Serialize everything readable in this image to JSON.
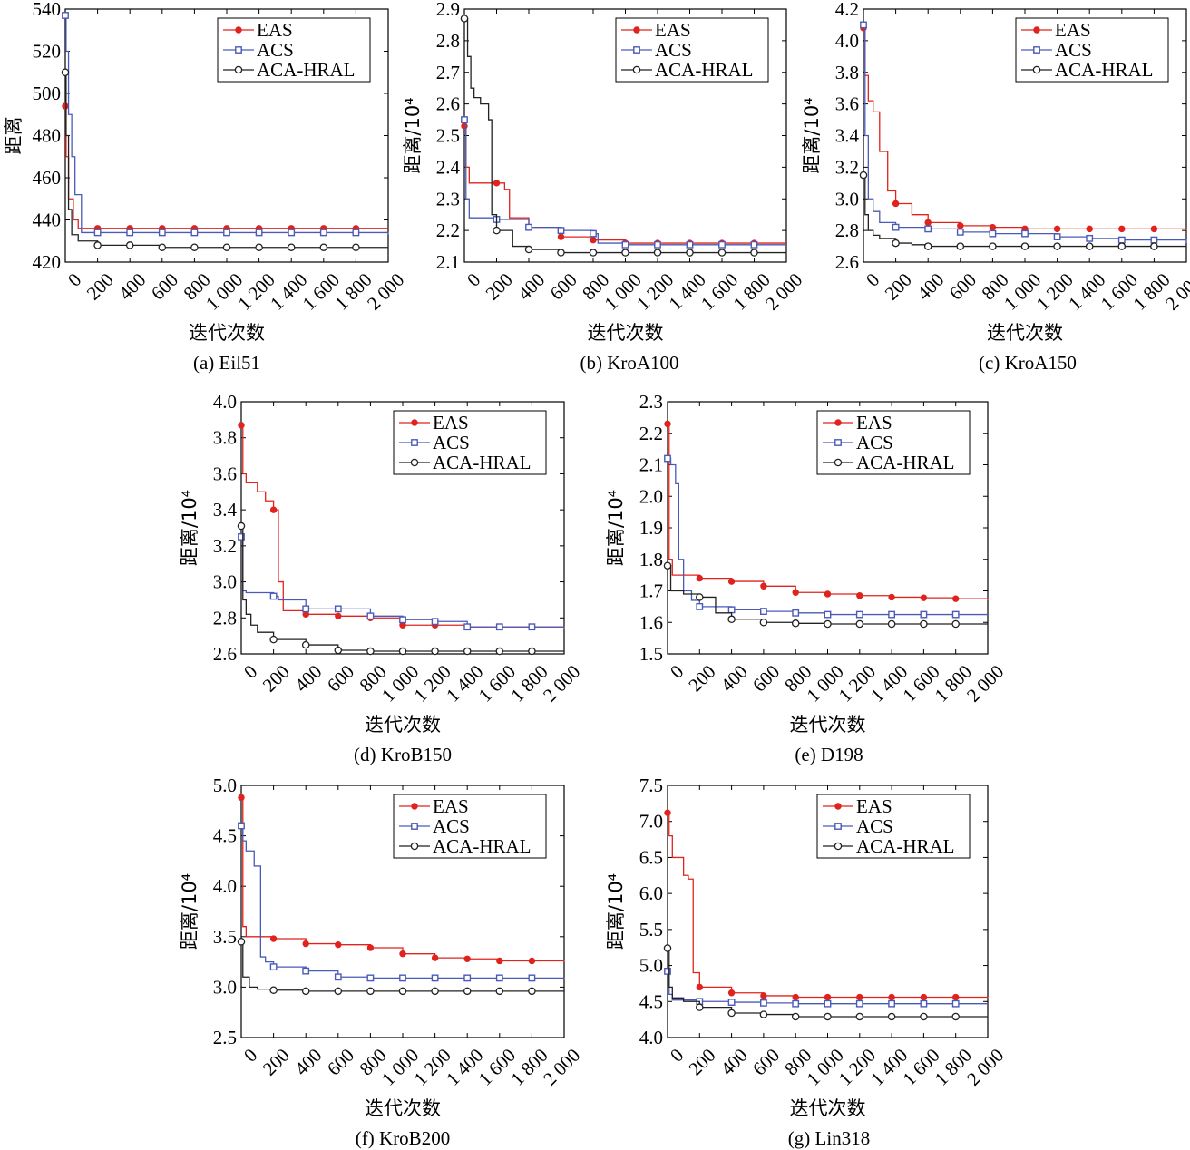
{
  "colors": {
    "EAS": "#e0231c",
    "ACS": "#4a5ab8",
    "ACA-HRAL": "#222222"
  },
  "chart_data": [
    {
      "type": "line",
      "caption": "(a) Eil51",
      "xlabel": "迭代次数",
      "ylabel": "距离",
      "xlim": [
        0,
        2000
      ],
      "ylim": [
        420,
        540
      ],
      "xticks": [
        0,
        200,
        400,
        600,
        800,
        1000,
        1200,
        1400,
        1600,
        1800,
        2000
      ],
      "xtick_labels": [
        "0",
        "200",
        "400",
        "600",
        "800",
        "1 000",
        "1 200",
        "1 400",
        "1 600",
        "1 800",
        "2 000"
      ],
      "yticks": [
        420,
        440,
        460,
        480,
        500,
        520,
        540
      ],
      "ytick_labels": [
        "420",
        "440",
        "460",
        "480",
        "500",
        "520",
        "540"
      ],
      "legend": [
        "EAS",
        "ACS",
        "ACA-HRAL"
      ],
      "legend_position": "top-right",
      "series": [
        {
          "name": "EAS",
          "x": [
            0,
            5,
            20,
            50,
            80,
            200,
            2000
          ],
          "y": [
            494,
            470,
            450,
            440,
            436,
            436,
            436
          ]
        },
        {
          "name": "ACS",
          "x": [
            0,
            5,
            20,
            40,
            60,
            100,
            200,
            2000
          ],
          "y": [
            537,
            520,
            490,
            470,
            452,
            434,
            434,
            433
          ]
        },
        {
          "name": "ACA-HRAL",
          "x": [
            0,
            5,
            20,
            40,
            80,
            200,
            400,
            600,
            2000
          ],
          "y": [
            510,
            480,
            445,
            433,
            430,
            428,
            428,
            427,
            427
          ]
        }
      ]
    },
    {
      "type": "line",
      "caption": "(b) KroA100",
      "xlabel": "迭代次数",
      "ylabel": "距离/10⁴",
      "xlim": [
        0,
        2000
      ],
      "ylim": [
        2.1,
        2.9
      ],
      "xticks": [
        0,
        200,
        400,
        600,
        800,
        1000,
        1200,
        1400,
        1600,
        1800,
        2000
      ],
      "xtick_labels": [
        "0",
        "200",
        "400",
        "600",
        "800",
        "1 000",
        "1 200",
        "1 400",
        "1 600",
        "1 800",
        "2 000"
      ],
      "yticks": [
        2.1,
        2.2,
        2.3,
        2.4,
        2.5,
        2.6,
        2.7,
        2.8,
        2.9
      ],
      "ytick_labels": [
        "2.1",
        "2.2",
        "2.3",
        "2.4",
        "2.5",
        "2.6",
        "2.7",
        "2.8",
        "2.9"
      ],
      "legend": [
        "EAS",
        "ACS",
        "ACA-HRAL"
      ],
      "legend_position": "top-right",
      "series": [
        {
          "name": "EAS",
          "x": [
            0,
            10,
            30,
            200,
            250,
            280,
            400,
            600,
            800,
            1000,
            2000
          ],
          "y": [
            2.53,
            2.4,
            2.35,
            2.35,
            2.33,
            2.24,
            2.21,
            2.18,
            2.17,
            2.16,
            2.16
          ]
        },
        {
          "name": "ACS",
          "x": [
            0,
            10,
            30,
            200,
            400,
            600,
            800,
            830,
            1000,
            2000
          ],
          "y": [
            2.55,
            2.3,
            2.24,
            2.235,
            2.21,
            2.2,
            2.19,
            2.16,
            2.155,
            2.155
          ]
        },
        {
          "name": "ACA-HRAL",
          "x": [
            0,
            20,
            40,
            60,
            100,
            150,
            170,
            200,
            300,
            400,
            600,
            800,
            2000
          ],
          "y": [
            2.87,
            2.75,
            2.65,
            2.62,
            2.6,
            2.55,
            2.25,
            2.2,
            2.15,
            2.14,
            2.13,
            2.13,
            2.13
          ]
        }
      ]
    },
    {
      "type": "line",
      "caption": "(c) KroA150",
      "xlabel": "迭代次数",
      "ylabel": "距离/10⁴",
      "xlim": [
        0,
        2000
      ],
      "ylim": [
        2.6,
        4.2
      ],
      "xticks": [
        0,
        200,
        400,
        600,
        800,
        1000,
        1200,
        1400,
        1600,
        1800,
        2000
      ],
      "xtick_labels": [
        "0",
        "200",
        "400",
        "600",
        "800",
        "1 000",
        "1 200",
        "1 400",
        "1 600",
        "1 800",
        "2 000"
      ],
      "yticks": [
        2.6,
        2.8,
        3.0,
        3.2,
        3.4,
        3.6,
        3.8,
        4.0,
        4.2
      ],
      "ytick_labels": [
        "2.6",
        "2.8",
        "3.0",
        "3.2",
        "3.4",
        "3.6",
        "3.8",
        "4.0",
        "4.2"
      ],
      "legend": [
        "EAS",
        "ACS",
        "ACA-HRAL"
      ],
      "legend_position": "top-right",
      "series": [
        {
          "name": "EAS",
          "x": [
            0,
            10,
            30,
            60,
            100,
            150,
            200,
            300,
            400,
            600,
            800,
            1000,
            2000
          ],
          "y": [
            4.08,
            3.78,
            3.62,
            3.55,
            3.3,
            3.05,
            2.97,
            2.9,
            2.85,
            2.83,
            2.82,
            2.81,
            2.8
          ]
        },
        {
          "name": "ACS",
          "x": [
            0,
            10,
            30,
            60,
            100,
            200,
            400,
            600,
            800,
            1000,
            1200,
            1400,
            1600,
            2000
          ],
          "y": [
            4.1,
            3.4,
            3.0,
            2.92,
            2.85,
            2.82,
            2.81,
            2.79,
            2.78,
            2.78,
            2.76,
            2.75,
            2.74,
            2.72
          ]
        },
        {
          "name": "ACA-HRAL",
          "x": [
            0,
            10,
            30,
            60,
            100,
            200,
            300,
            400,
            2000
          ],
          "y": [
            3.15,
            2.9,
            2.8,
            2.77,
            2.75,
            2.72,
            2.71,
            2.7,
            2.7
          ]
        }
      ]
    },
    {
      "type": "line",
      "caption": "(d) KroB150",
      "xlabel": "迭代次数",
      "ylabel": "距离/10⁴",
      "xlim": [
        0,
        2000
      ],
      "ylim": [
        2.6,
        4.0
      ],
      "xticks": [
        0,
        200,
        400,
        600,
        800,
        1000,
        1200,
        1400,
        1600,
        1800,
        2000
      ],
      "xtick_labels": [
        "0",
        "200",
        "400",
        "600",
        "800",
        "1 000",
        "1 200",
        "1 400",
        "1 600",
        "1 800",
        "2 000"
      ],
      "yticks": [
        2.6,
        2.8,
        3.0,
        3.2,
        3.4,
        3.6,
        3.8,
        4.0
      ],
      "ytick_labels": [
        "2.6",
        "2.8",
        "3.0",
        "3.2",
        "3.4",
        "3.6",
        "3.8",
        "4.0"
      ],
      "legend": [
        "EAS",
        "ACS",
        "ACA-HRAL"
      ],
      "legend_position": "top-right",
      "series": [
        {
          "name": "EAS",
          "x": [
            0,
            10,
            30,
            100,
            150,
            200,
            230,
            260,
            400,
            600,
            800,
            1000,
            1400,
            2000
          ],
          "y": [
            3.87,
            3.6,
            3.55,
            3.5,
            3.45,
            3.4,
            3.0,
            2.84,
            2.82,
            2.81,
            2.8,
            2.76,
            2.75,
            2.74
          ]
        },
        {
          "name": "ACS",
          "x": [
            0,
            10,
            30,
            200,
            230,
            400,
            600,
            800,
            1000,
            1200,
            1400,
            2000
          ],
          "y": [
            3.25,
            2.95,
            2.94,
            2.92,
            2.9,
            2.85,
            2.85,
            2.81,
            2.79,
            2.78,
            2.75,
            2.745
          ]
        },
        {
          "name": "ACA-HRAL",
          "x": [
            0,
            10,
            30,
            60,
            100,
            200,
            400,
            600,
            800,
            2000
          ],
          "y": [
            3.31,
            2.9,
            2.82,
            2.76,
            2.72,
            2.68,
            2.65,
            2.62,
            2.615,
            2.61
          ]
        }
      ]
    },
    {
      "type": "line",
      "caption": "(e) D198",
      "xlabel": "迭代次数",
      "ylabel": "距离/10⁴",
      "xlim": [
        0,
        2000
      ],
      "ylim": [
        1.5,
        2.3
      ],
      "xticks": [
        0,
        200,
        400,
        600,
        800,
        1000,
        1200,
        1400,
        1600,
        1800,
        2000
      ],
      "xtick_labels": [
        "0",
        "200",
        "400",
        "600",
        "800",
        "1 000",
        "1 200",
        "1 400",
        "1 600",
        "1 800",
        "2 000"
      ],
      "yticks": [
        1.5,
        1.6,
        1.7,
        1.8,
        1.9,
        2.0,
        2.1,
        2.2,
        2.3
      ],
      "ytick_labels": [
        "1.5",
        "1.6",
        "1.7",
        "1.8",
        "1.9",
        "2.0",
        "2.1",
        "2.2",
        "2.3"
      ],
      "legend": [
        "EAS",
        "ACS",
        "ACA-HRAL"
      ],
      "legend_position": "top-right",
      "series": [
        {
          "name": "EAS",
          "x": [
            0,
            10,
            30,
            200,
            400,
            600,
            800,
            1000,
            1200,
            1400,
            1600,
            1800,
            2000
          ],
          "y": [
            2.23,
            1.8,
            1.75,
            1.74,
            1.73,
            1.715,
            1.695,
            1.69,
            1.685,
            1.68,
            1.678,
            1.675,
            1.67
          ]
        },
        {
          "name": "ACS",
          "x": [
            0,
            20,
            50,
            70,
            100,
            150,
            200,
            400,
            600,
            800,
            1000,
            2000
          ],
          "y": [
            2.12,
            2.1,
            2.04,
            1.8,
            1.7,
            1.67,
            1.65,
            1.64,
            1.635,
            1.63,
            1.625,
            1.625
          ]
        },
        {
          "name": "ACA-HRAL",
          "x": [
            0,
            20,
            100,
            200,
            300,
            400,
            600,
            800,
            1000,
            2000
          ],
          "y": [
            1.78,
            1.7,
            1.69,
            1.68,
            1.63,
            1.61,
            1.6,
            1.597,
            1.595,
            1.595
          ]
        }
      ]
    },
    {
      "type": "line",
      "caption": "(f) KroB200",
      "xlabel": "迭代次数",
      "ylabel": "距离/10⁴",
      "xlim": [
        0,
        2000
      ],
      "ylim": [
        2.5,
        5.0
      ],
      "xticks": [
        0,
        200,
        400,
        600,
        800,
        1000,
        1200,
        1400,
        1600,
        1800,
        2000
      ],
      "xtick_labels": [
        "0",
        "200",
        "400",
        "600",
        "800",
        "1 000",
        "1 200",
        "1 400",
        "1 600",
        "1 800",
        "2 000"
      ],
      "yticks": [
        2.5,
        3.0,
        3.5,
        4.0,
        4.5,
        5.0
      ],
      "ytick_labels": [
        "2.5",
        "3.0",
        "3.5",
        "4.0",
        "4.5",
        "5.0"
      ],
      "legend": [
        "EAS",
        "ACS",
        "ACA-HRAL"
      ],
      "legend_position": "top-right",
      "series": [
        {
          "name": "EAS",
          "x": [
            0,
            10,
            30,
            200,
            400,
            600,
            800,
            1000,
            1200,
            1400,
            1600,
            2000
          ],
          "y": [
            4.88,
            3.6,
            3.5,
            3.48,
            3.43,
            3.42,
            3.39,
            3.33,
            3.29,
            3.28,
            3.26,
            3.25
          ]
        },
        {
          "name": "ACS",
          "x": [
            0,
            10,
            30,
            80,
            120,
            150,
            200,
            400,
            600,
            800,
            2000
          ],
          "y": [
            4.6,
            4.45,
            4.35,
            4.2,
            3.3,
            3.25,
            3.2,
            3.16,
            3.1,
            3.09,
            3.08
          ]
        },
        {
          "name": "ACA-HRAL",
          "x": [
            0,
            10,
            50,
            100,
            200,
            400,
            2000
          ],
          "y": [
            3.45,
            3.1,
            3.0,
            2.98,
            2.97,
            2.96,
            2.95
          ]
        }
      ]
    },
    {
      "type": "line",
      "caption": "(g) Lin318",
      "xlabel": "迭代次数",
      "ylabel": "距离/10⁴",
      "xlim": [
        0,
        2000
      ],
      "ylim": [
        4.0,
        7.5
      ],
      "xticks": [
        0,
        200,
        400,
        600,
        800,
        1000,
        1200,
        1400,
        1600,
        1800,
        2000
      ],
      "xtick_labels": [
        "0",
        "200",
        "400",
        "600",
        "800",
        "1 000",
        "1 200",
        "1 400",
        "1 600",
        "1 800",
        "2 000"
      ],
      "yticks": [
        4.0,
        4.5,
        5.0,
        5.5,
        6.0,
        6.5,
        7.0,
        7.5
      ],
      "ytick_labels": [
        "4.0",
        "4.5",
        "5.0",
        "5.5",
        "6.0",
        "6.5",
        "7.0",
        "7.5"
      ],
      "legend": [
        "EAS",
        "ACS",
        "ACA-HRAL"
      ],
      "legend_position": "top-right",
      "series": [
        {
          "name": "EAS",
          "x": [
            0,
            10,
            30,
            80,
            100,
            130,
            160,
            200,
            400,
            600,
            800,
            2000
          ],
          "y": [
            7.12,
            6.8,
            6.5,
            6.5,
            6.25,
            6.2,
            4.9,
            4.7,
            4.62,
            4.58,
            4.56,
            4.55
          ]
        },
        {
          "name": "ACS",
          "x": [
            0,
            10,
            30,
            200,
            400,
            600,
            800,
            2000
          ],
          "y": [
            4.92,
            4.6,
            4.52,
            4.5,
            4.49,
            4.48,
            4.47,
            4.47
          ]
        },
        {
          "name": "ACA-HRAL",
          "x": [
            0,
            10,
            30,
            100,
            200,
            400,
            600,
            800,
            2000
          ],
          "y": [
            5.24,
            4.7,
            4.55,
            4.5,
            4.42,
            4.34,
            4.32,
            4.29,
            4.29
          ]
        }
      ]
    }
  ]
}
